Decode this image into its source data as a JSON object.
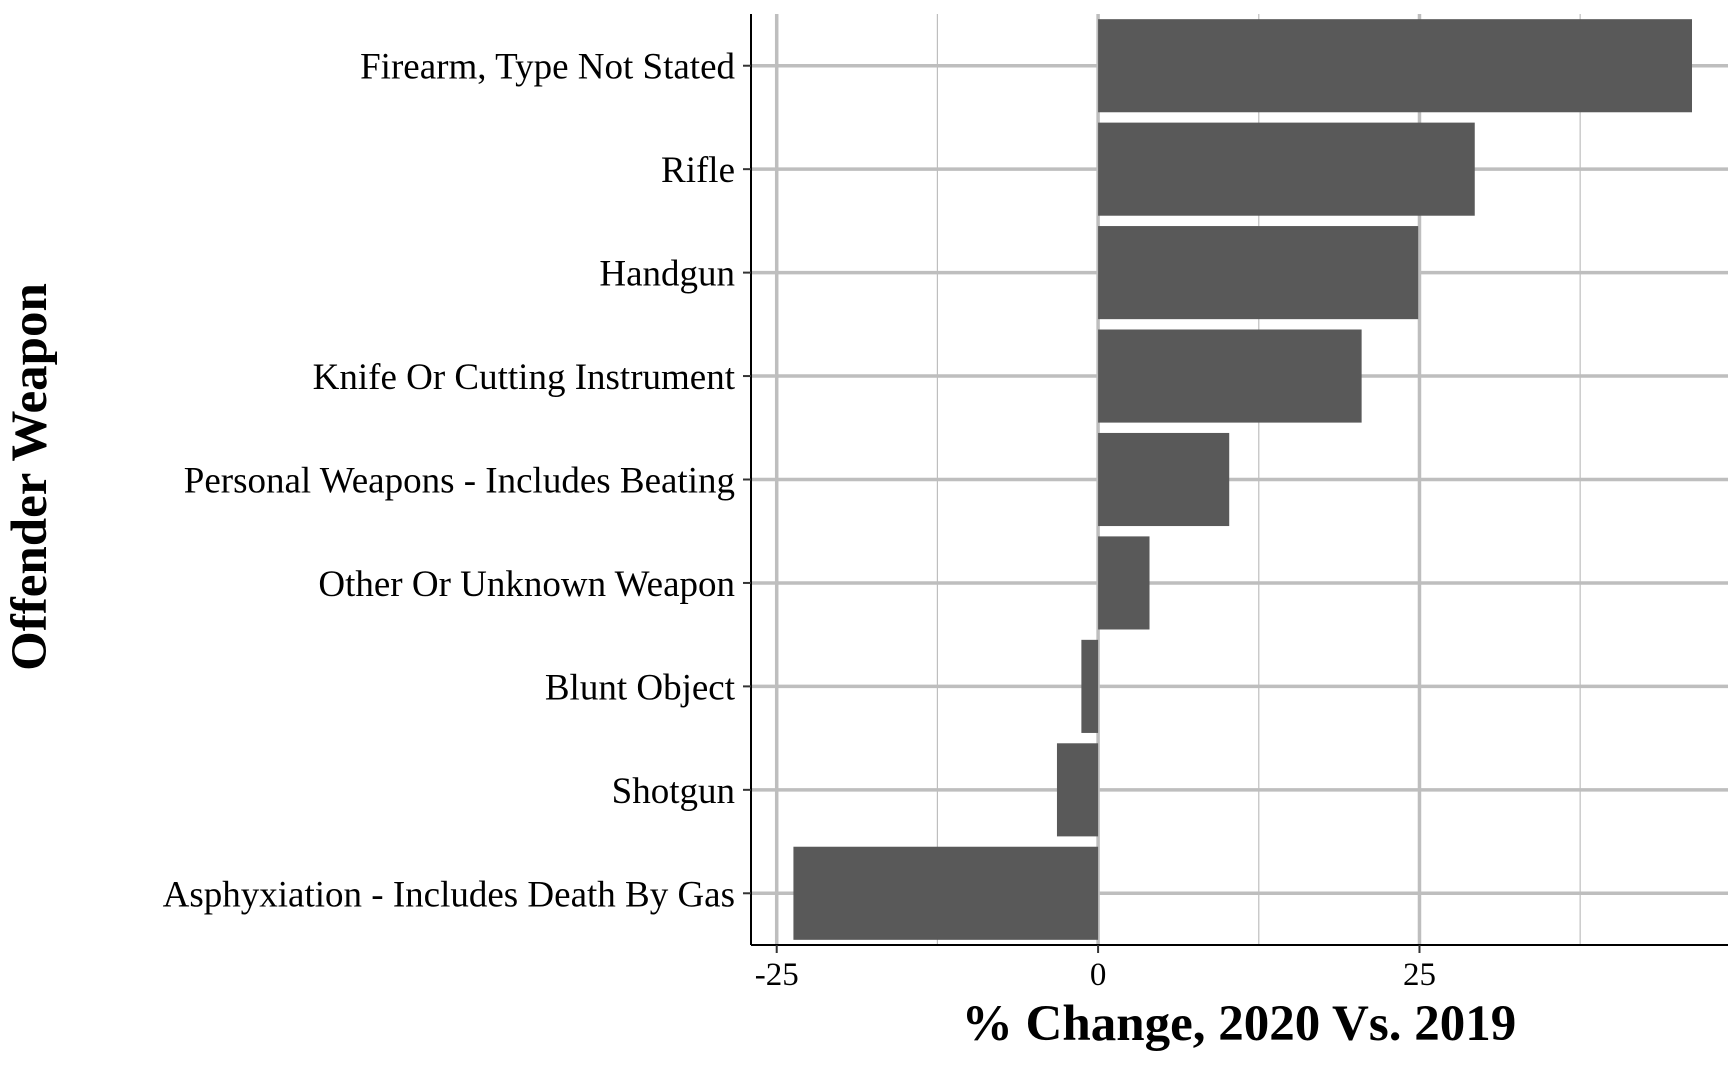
{
  "chart_data": {
    "type": "bar",
    "orientation": "horizontal",
    "title": "",
    "xlabel": "% Change, 2020 Vs. 2019",
    "ylabel": "Offender Weapon",
    "xlim": [
      -27,
      49
    ],
    "x_ticks": [
      -25,
      0,
      25
    ],
    "x_tick_labels": [
      "-25",
      "0",
      "25"
    ],
    "grid": true,
    "legend": "none",
    "categories": [
      "Firearm, Type Not Stated",
      "Rifle",
      "Handgun",
      "Knife Or Cutting Instrument",
      "Personal Weapons - Includes Beating",
      "Other Or Unknown Weapon",
      "Blunt Object",
      "Shotgun",
      "Asphyxiation - Includes Death By Gas"
    ],
    "values": [
      46.2,
      29.3,
      24.9,
      20.5,
      10.2,
      4.0,
      -1.3,
      -3.2,
      -23.7
    ],
    "bar_color": "#595959",
    "grid_color": "#bebebe"
  }
}
